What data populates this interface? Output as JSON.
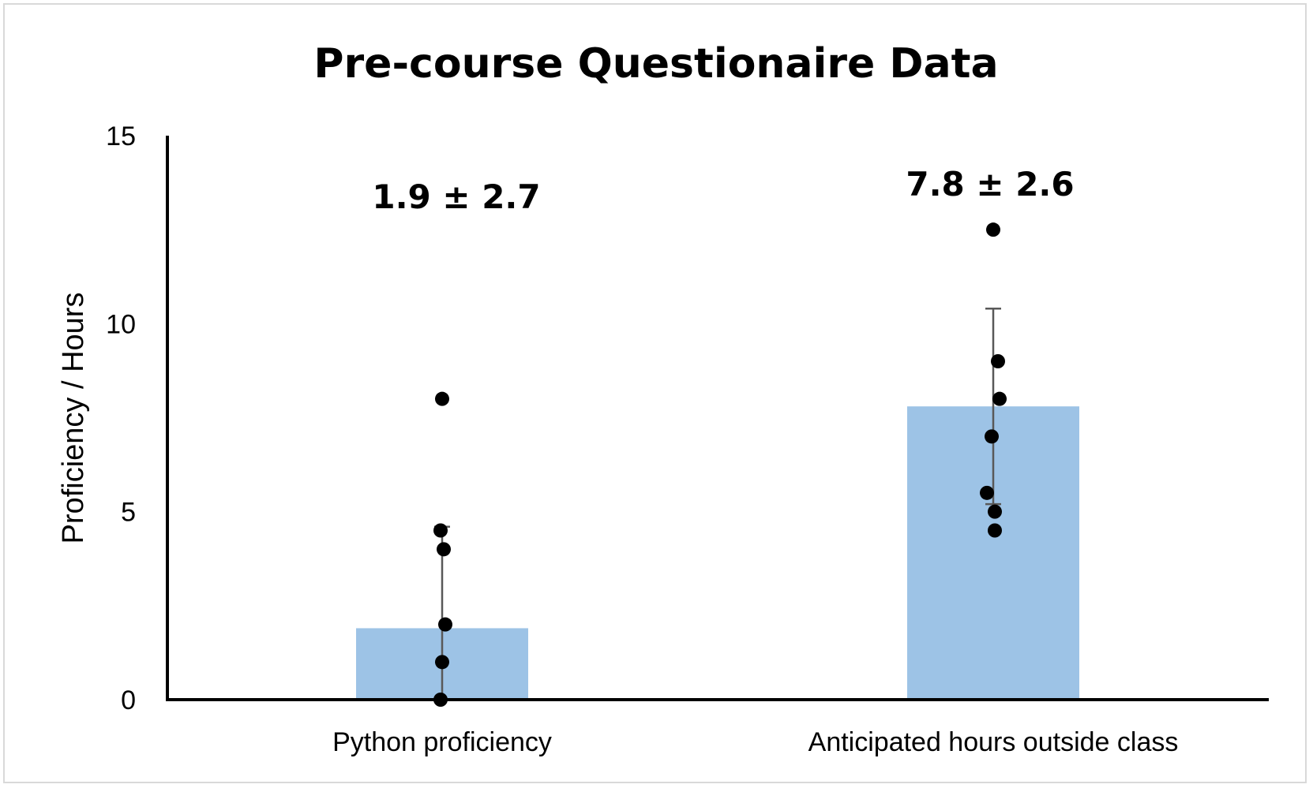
{
  "chart_data": {
    "type": "bar",
    "title": "Pre-course Questionaire Data",
    "xlabel": "",
    "ylabel": "Proficiency / Hours",
    "ylim": [
      0,
      15
    ],
    "yticks": [
      0,
      5,
      10,
      15
    ],
    "grid": false,
    "categories": [
      "Python proficiency",
      "Anticipated hours outside class"
    ],
    "values": [
      1.9,
      7.8
    ],
    "errors": [
      2.7,
      2.6
    ],
    "annotations": [
      "1.9 ± 2.7",
      "7.8 ± 2.6"
    ],
    "points": [
      [
        8,
        4.5,
        4,
        2,
        1,
        0
      ],
      [
        12.5,
        9,
        8,
        7,
        5.5,
        5,
        4.5
      ]
    ],
    "bar_color": "#9dc3e6",
    "point_color": "#000000",
    "errorbar_color": "#595959"
  }
}
